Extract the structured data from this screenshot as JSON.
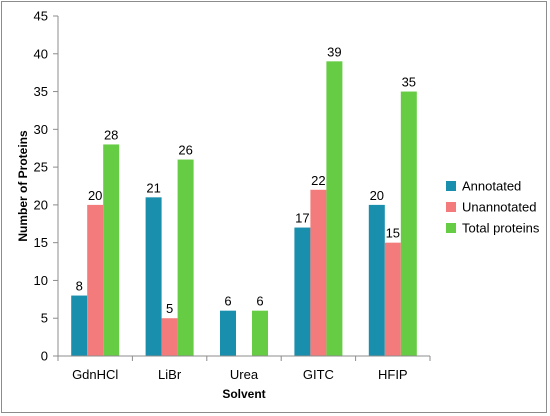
{
  "chart_data": {
    "type": "bar",
    "title": "",
    "xlabel": "Solvent",
    "ylabel": "Number of Proteins",
    "categories": [
      "GdnHCl",
      "LiBr",
      "Urea",
      "GITC",
      "HFIP"
    ],
    "ylim": [
      0,
      45
    ],
    "ytick_step": 5,
    "grid": false,
    "legend_position": "right",
    "series": [
      {
        "name": "Annotated",
        "color": "#1a8fad",
        "values": [
          8,
          21,
          6,
          17,
          20
        ]
      },
      {
        "name": "Unannotated",
        "color": "#f47b7b",
        "values": [
          20,
          5,
          null,
          22,
          15
        ]
      },
      {
        "name": "Total proteins",
        "color": "#66cc44",
        "values": [
          28,
          26,
          6,
          39,
          35
        ]
      }
    ]
  }
}
